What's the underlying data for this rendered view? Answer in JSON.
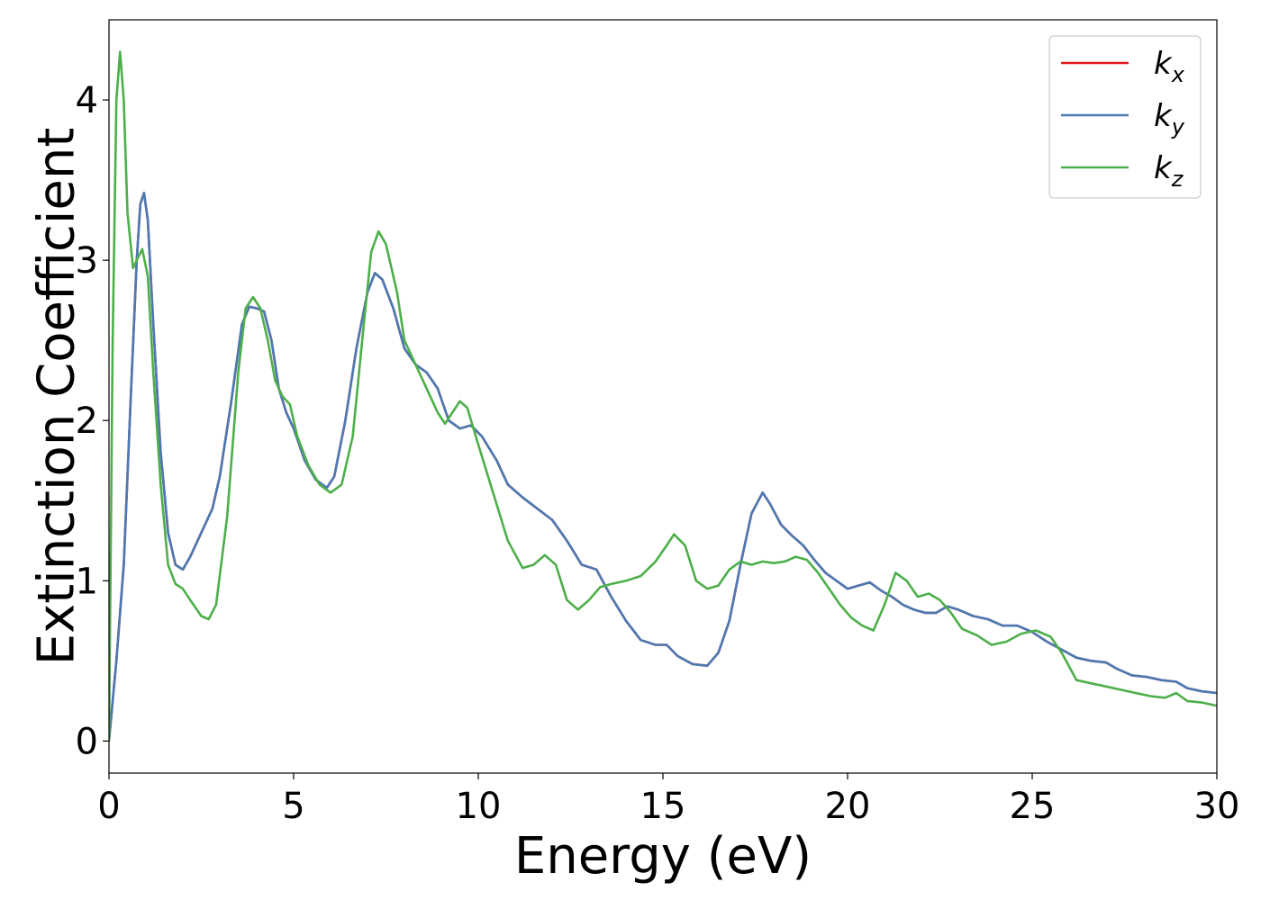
{
  "chart_data": {
    "type": "line",
    "xlabel": "Energy (eV)",
    "ylabel": "Extinction Coefficient",
    "xlim": [
      0,
      30
    ],
    "ylim": [
      -0.2,
      4.5
    ],
    "xticks": [
      0,
      5,
      10,
      15,
      20,
      25,
      30
    ],
    "yticks": [
      0,
      1,
      2,
      3,
      4
    ],
    "legend_position": "top-right",
    "grid": false,
    "series": [
      {
        "name": "k",
        "subscript": "x",
        "color": "#e41a1c",
        "points": [
          [
            0,
            0
          ],
          [
            0.2,
            0.5
          ],
          [
            0.4,
            1.1
          ],
          [
            0.6,
            2.2
          ],
          [
            0.75,
            3.0
          ],
          [
            0.85,
            3.35
          ],
          [
            0.95,
            3.42
          ],
          [
            1.05,
            3.25
          ],
          [
            1.2,
            2.6
          ],
          [
            1.4,
            1.8
          ],
          [
            1.6,
            1.3
          ],
          [
            1.8,
            1.1
          ],
          [
            2.0,
            1.07
          ],
          [
            2.2,
            1.15
          ],
          [
            2.5,
            1.3
          ],
          [
            2.8,
            1.45
          ],
          [
            3.0,
            1.65
          ],
          [
            3.3,
            2.1
          ],
          [
            3.6,
            2.6
          ],
          [
            3.8,
            2.71
          ],
          [
            4.0,
            2.7
          ],
          [
            4.2,
            2.68
          ],
          [
            4.4,
            2.5
          ],
          [
            4.6,
            2.2
          ],
          [
            4.8,
            2.05
          ],
          [
            5.0,
            1.95
          ],
          [
            5.3,
            1.75
          ],
          [
            5.6,
            1.63
          ],
          [
            5.9,
            1.58
          ],
          [
            6.1,
            1.65
          ],
          [
            6.4,
            2.0
          ],
          [
            6.7,
            2.45
          ],
          [
            7.0,
            2.8
          ],
          [
            7.2,
            2.92
          ],
          [
            7.4,
            2.88
          ],
          [
            7.7,
            2.7
          ],
          [
            8.0,
            2.45
          ],
          [
            8.3,
            2.35
          ],
          [
            8.6,
            2.3
          ],
          [
            8.9,
            2.2
          ],
          [
            9.2,
            2.0
          ],
          [
            9.5,
            1.95
          ],
          [
            9.8,
            1.97
          ],
          [
            10.1,
            1.9
          ],
          [
            10.5,
            1.75
          ],
          [
            10.8,
            1.6
          ],
          [
            11.2,
            1.52
          ],
          [
            11.6,
            1.45
          ],
          [
            12.0,
            1.38
          ],
          [
            12.4,
            1.25
          ],
          [
            12.8,
            1.1
          ],
          [
            13.2,
            1.07
          ],
          [
            13.6,
            0.9
          ],
          [
            14.0,
            0.75
          ],
          [
            14.4,
            0.63
          ],
          [
            14.8,
            0.6
          ],
          [
            15.1,
            0.6
          ],
          [
            15.4,
            0.53
          ],
          [
            15.8,
            0.48
          ],
          [
            16.2,
            0.47
          ],
          [
            16.5,
            0.55
          ],
          [
            16.8,
            0.75
          ],
          [
            17.1,
            1.1
          ],
          [
            17.4,
            1.42
          ],
          [
            17.7,
            1.55
          ],
          [
            17.9,
            1.48
          ],
          [
            18.2,
            1.35
          ],
          [
            18.5,
            1.28
          ],
          [
            18.8,
            1.22
          ],
          [
            19.1,
            1.13
          ],
          [
            19.4,
            1.05
          ],
          [
            19.7,
            1.0
          ],
          [
            20.0,
            0.95
          ],
          [
            20.3,
            0.97
          ],
          [
            20.6,
            0.99
          ],
          [
            20.9,
            0.94
          ],
          [
            21.2,
            0.9
          ],
          [
            21.5,
            0.85
          ],
          [
            21.8,
            0.82
          ],
          [
            22.1,
            0.8
          ],
          [
            22.4,
            0.8
          ],
          [
            22.7,
            0.84
          ],
          [
            23.0,
            0.82
          ],
          [
            23.4,
            0.78
          ],
          [
            23.8,
            0.76
          ],
          [
            24.2,
            0.72
          ],
          [
            24.6,
            0.72
          ],
          [
            25.0,
            0.68
          ],
          [
            25.4,
            0.62
          ],
          [
            25.8,
            0.57
          ],
          [
            26.2,
            0.52
          ],
          [
            26.6,
            0.5
          ],
          [
            27.0,
            0.49
          ],
          [
            27.3,
            0.45
          ],
          [
            27.7,
            0.41
          ],
          [
            28.1,
            0.4
          ],
          [
            28.5,
            0.38
          ],
          [
            28.9,
            0.37
          ],
          [
            29.2,
            0.33
          ],
          [
            29.6,
            0.31
          ],
          [
            30.0,
            0.3
          ]
        ]
      },
      {
        "name": "k",
        "subscript": "y",
        "color": "#4a7ab4",
        "points": [
          [
            0,
            0
          ],
          [
            0.2,
            0.5
          ],
          [
            0.4,
            1.1
          ],
          [
            0.6,
            2.2
          ],
          [
            0.75,
            3.0
          ],
          [
            0.85,
            3.35
          ],
          [
            0.95,
            3.42
          ],
          [
            1.05,
            3.25
          ],
          [
            1.2,
            2.6
          ],
          [
            1.4,
            1.8
          ],
          [
            1.6,
            1.3
          ],
          [
            1.8,
            1.1
          ],
          [
            2.0,
            1.07
          ],
          [
            2.2,
            1.15
          ],
          [
            2.5,
            1.3
          ],
          [
            2.8,
            1.45
          ],
          [
            3.0,
            1.65
          ],
          [
            3.3,
            2.1
          ],
          [
            3.6,
            2.6
          ],
          [
            3.8,
            2.71
          ],
          [
            4.0,
            2.7
          ],
          [
            4.2,
            2.68
          ],
          [
            4.4,
            2.5
          ],
          [
            4.6,
            2.2
          ],
          [
            4.8,
            2.05
          ],
          [
            5.0,
            1.95
          ],
          [
            5.3,
            1.75
          ],
          [
            5.6,
            1.63
          ],
          [
            5.9,
            1.58
          ],
          [
            6.1,
            1.65
          ],
          [
            6.4,
            2.0
          ],
          [
            6.7,
            2.45
          ],
          [
            7.0,
            2.8
          ],
          [
            7.2,
            2.92
          ],
          [
            7.4,
            2.88
          ],
          [
            7.7,
            2.7
          ],
          [
            8.0,
            2.45
          ],
          [
            8.3,
            2.35
          ],
          [
            8.6,
            2.3
          ],
          [
            8.9,
            2.2
          ],
          [
            9.2,
            2.0
          ],
          [
            9.5,
            1.95
          ],
          [
            9.8,
            1.97
          ],
          [
            10.1,
            1.9
          ],
          [
            10.5,
            1.75
          ],
          [
            10.8,
            1.6
          ],
          [
            11.2,
            1.52
          ],
          [
            11.6,
            1.45
          ],
          [
            12.0,
            1.38
          ],
          [
            12.4,
            1.25
          ],
          [
            12.8,
            1.1
          ],
          [
            13.2,
            1.07
          ],
          [
            13.6,
            0.9
          ],
          [
            14.0,
            0.75
          ],
          [
            14.4,
            0.63
          ],
          [
            14.8,
            0.6
          ],
          [
            15.1,
            0.6
          ],
          [
            15.4,
            0.53
          ],
          [
            15.8,
            0.48
          ],
          [
            16.2,
            0.47
          ],
          [
            16.5,
            0.55
          ],
          [
            16.8,
            0.75
          ],
          [
            17.1,
            1.1
          ],
          [
            17.4,
            1.42
          ],
          [
            17.7,
            1.55
          ],
          [
            17.9,
            1.48
          ],
          [
            18.2,
            1.35
          ],
          [
            18.5,
            1.28
          ],
          [
            18.8,
            1.22
          ],
          [
            19.1,
            1.13
          ],
          [
            19.4,
            1.05
          ],
          [
            19.7,
            1.0
          ],
          [
            20.0,
            0.95
          ],
          [
            20.3,
            0.97
          ],
          [
            20.6,
            0.99
          ],
          [
            20.9,
            0.94
          ],
          [
            21.2,
            0.9
          ],
          [
            21.5,
            0.85
          ],
          [
            21.8,
            0.82
          ],
          [
            22.1,
            0.8
          ],
          [
            22.4,
            0.8
          ],
          [
            22.7,
            0.84
          ],
          [
            23.0,
            0.82
          ],
          [
            23.4,
            0.78
          ],
          [
            23.8,
            0.76
          ],
          [
            24.2,
            0.72
          ],
          [
            24.6,
            0.72
          ],
          [
            25.0,
            0.68
          ],
          [
            25.4,
            0.62
          ],
          [
            25.8,
            0.57
          ],
          [
            26.2,
            0.52
          ],
          [
            26.6,
            0.5
          ],
          [
            27.0,
            0.49
          ],
          [
            27.3,
            0.45
          ],
          [
            27.7,
            0.41
          ],
          [
            28.1,
            0.4
          ],
          [
            28.5,
            0.38
          ],
          [
            28.9,
            0.37
          ],
          [
            29.2,
            0.33
          ],
          [
            29.6,
            0.31
          ],
          [
            30.0,
            0.3
          ]
        ]
      },
      {
        "name": "k",
        "subscript": "z",
        "color": "#4daf4a",
        "points": [
          [
            0,
            0
          ],
          [
            0.1,
            2.5
          ],
          [
            0.2,
            4.0
          ],
          [
            0.3,
            4.3
          ],
          [
            0.4,
            4.0
          ],
          [
            0.5,
            3.3
          ],
          [
            0.65,
            2.95
          ],
          [
            0.75,
            3.0
          ],
          [
            0.9,
            3.07
          ],
          [
            1.05,
            2.9
          ],
          [
            1.2,
            2.3
          ],
          [
            1.4,
            1.6
          ],
          [
            1.6,
            1.1
          ],
          [
            1.8,
            0.98
          ],
          [
            2.0,
            0.95
          ],
          [
            2.2,
            0.88
          ],
          [
            2.5,
            0.78
          ],
          [
            2.7,
            0.76
          ],
          [
            2.9,
            0.85
          ],
          [
            3.2,
            1.4
          ],
          [
            3.5,
            2.3
          ],
          [
            3.7,
            2.7
          ],
          [
            3.9,
            2.77
          ],
          [
            4.1,
            2.7
          ],
          [
            4.3,
            2.5
          ],
          [
            4.5,
            2.25
          ],
          [
            4.7,
            2.15
          ],
          [
            4.9,
            2.1
          ],
          [
            5.1,
            1.9
          ],
          [
            5.4,
            1.72
          ],
          [
            5.7,
            1.6
          ],
          [
            6.0,
            1.55
          ],
          [
            6.3,
            1.6
          ],
          [
            6.6,
            1.9
          ],
          [
            6.9,
            2.6
          ],
          [
            7.1,
            3.05
          ],
          [
            7.3,
            3.18
          ],
          [
            7.5,
            3.1
          ],
          [
            7.8,
            2.8
          ],
          [
            8.0,
            2.5
          ],
          [
            8.3,
            2.35
          ],
          [
            8.6,
            2.2
          ],
          [
            8.9,
            2.05
          ],
          [
            9.1,
            1.98
          ],
          [
            9.3,
            2.05
          ],
          [
            9.5,
            2.12
          ],
          [
            9.7,
            2.08
          ],
          [
            10.0,
            1.85
          ],
          [
            10.4,
            1.55
          ],
          [
            10.8,
            1.25
          ],
          [
            11.2,
            1.08
          ],
          [
            11.5,
            1.1
          ],
          [
            11.8,
            1.16
          ],
          [
            12.1,
            1.1
          ],
          [
            12.4,
            0.88
          ],
          [
            12.7,
            0.82
          ],
          [
            13.0,
            0.88
          ],
          [
            13.3,
            0.96
          ],
          [
            13.6,
            0.98
          ],
          [
            14.0,
            1.0
          ],
          [
            14.4,
            1.03
          ],
          [
            14.8,
            1.12
          ],
          [
            15.1,
            1.22
          ],
          [
            15.3,
            1.29
          ],
          [
            15.6,
            1.22
          ],
          [
            15.9,
            1.0
          ],
          [
            16.2,
            0.95
          ],
          [
            16.5,
            0.97
          ],
          [
            16.8,
            1.07
          ],
          [
            17.1,
            1.12
          ],
          [
            17.4,
            1.1
          ],
          [
            17.7,
            1.12
          ],
          [
            18.0,
            1.11
          ],
          [
            18.3,
            1.12
          ],
          [
            18.6,
            1.15
          ],
          [
            18.9,
            1.13
          ],
          [
            19.2,
            1.05
          ],
          [
            19.5,
            0.95
          ],
          [
            19.8,
            0.85
          ],
          [
            20.1,
            0.77
          ],
          [
            20.4,
            0.72
          ],
          [
            20.7,
            0.69
          ],
          [
            21.0,
            0.85
          ],
          [
            21.3,
            1.05
          ],
          [
            21.6,
            1.0
          ],
          [
            21.9,
            0.9
          ],
          [
            22.2,
            0.92
          ],
          [
            22.5,
            0.88
          ],
          [
            22.8,
            0.8
          ],
          [
            23.1,
            0.7
          ],
          [
            23.5,
            0.66
          ],
          [
            23.9,
            0.6
          ],
          [
            24.3,
            0.62
          ],
          [
            24.7,
            0.67
          ],
          [
            25.1,
            0.69
          ],
          [
            25.5,
            0.65
          ],
          [
            25.8,
            0.55
          ],
          [
            26.2,
            0.38
          ],
          [
            26.6,
            0.36
          ],
          [
            27.0,
            0.34
          ],
          [
            27.4,
            0.32
          ],
          [
            27.8,
            0.3
          ],
          [
            28.2,
            0.28
          ],
          [
            28.6,
            0.27
          ],
          [
            28.9,
            0.3
          ],
          [
            29.2,
            0.25
          ],
          [
            29.6,
            0.24
          ],
          [
            30.0,
            0.22
          ]
        ]
      }
    ]
  }
}
